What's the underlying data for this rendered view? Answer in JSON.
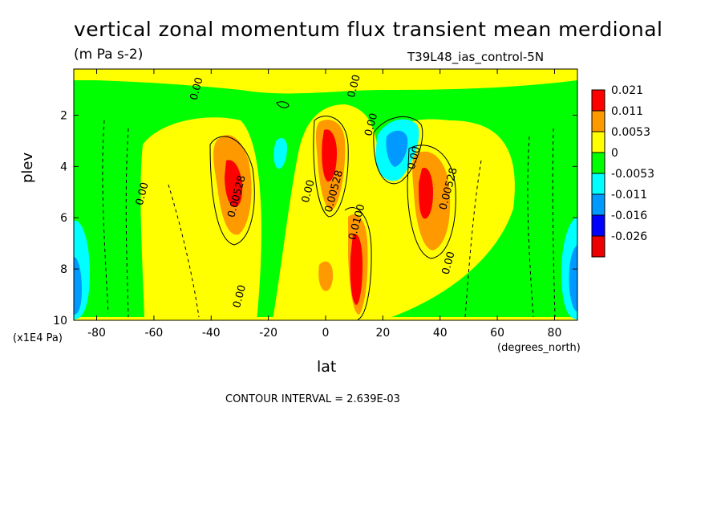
{
  "chart_data": {
    "type": "heatmap",
    "title": "vertical zonal momentum flux transient mean merdional",
    "units": "(m Pa s-2)",
    "dataset": "T39L48_ias_control-5N",
    "xlabel": "lat",
    "x_units": "(degrees_north)",
    "ylabel": "plev",
    "y_units": "(x1E4 Pa)",
    "contour_interval": "CONTOUR INTERVAL = 2.639E-03",
    "xlim": [
      -88,
      88
    ],
    "ylim": [
      0.2,
      10
    ],
    "y_inverted": true,
    "x_ticks": [
      "-80",
      "-60",
      "-40",
      "-20",
      "0",
      "20",
      "40",
      "60",
      "80"
    ],
    "y_ticks": [
      "2",
      "4",
      "6",
      "8",
      "10"
    ],
    "legend": {
      "placement": "right",
      "levels": [
        "0.021",
        "0.011",
        "0.0053",
        "0",
        "-0.0053",
        "-0.011",
        "-0.016",
        "-0.026"
      ],
      "colors": [
        "#ff0000",
        "#ff9900",
        "#ffff00",
        "#00ff00",
        "#00ffff",
        "#0099ff",
        "#0000ff",
        "#ee0000"
      ]
    },
    "contour_labels": [
      {
        "text": "0.00",
        "lat": -44,
        "plev": 1.0
      },
      {
        "text": "0.00",
        "lat": 11,
        "plev": 0.9
      },
      {
        "text": "0.00",
        "lat": 17,
        "plev": 2.4
      },
      {
        "text": "0.00",
        "lat": 32,
        "plev": 3.7
      },
      {
        "text": "0.00",
        "lat": -63,
        "plev": 5.1
      },
      {
        "text": "0.00528",
        "lat": -30,
        "plev": 5.2
      },
      {
        "text": "0.00",
        "lat": -5,
        "plev": 5.0
      },
      {
        "text": "0.00528",
        "lat": 4,
        "plev": 5.0
      },
      {
        "text": "0.0100",
        "lat": 12,
        "plev": 6.2
      },
      {
        "text": "0.00528",
        "lat": 44,
        "plev": 4.9
      },
      {
        "text": "0.00",
        "lat": 44,
        "plev": 7.8
      },
      {
        "text": "0.00",
        "lat": -29,
        "plev": 9.1
      }
    ],
    "features": [
      {
        "sign": "positive",
        "lat": -33,
        "plev": 4.3,
        "peak": "0.021"
      },
      {
        "sign": "positive",
        "lat": 2,
        "plev": 3.6,
        "peak": "0.021"
      },
      {
        "sign": "positive",
        "lat": 12,
        "plev": 8.0,
        "peak": "0.021"
      },
      {
        "sign": "positive",
        "lat": 36,
        "plev": 4.8,
        "peak": "0.021"
      },
      {
        "sign": "negative",
        "lat": 24,
        "plev": 3.2,
        "peak": "-0.011"
      },
      {
        "sign": "negative",
        "lat": -85,
        "plev": 8.2,
        "peak": "-0.011"
      },
      {
        "sign": "negative",
        "lat": 86,
        "plev": 8.2,
        "peak": "-0.011"
      }
    ]
  }
}
